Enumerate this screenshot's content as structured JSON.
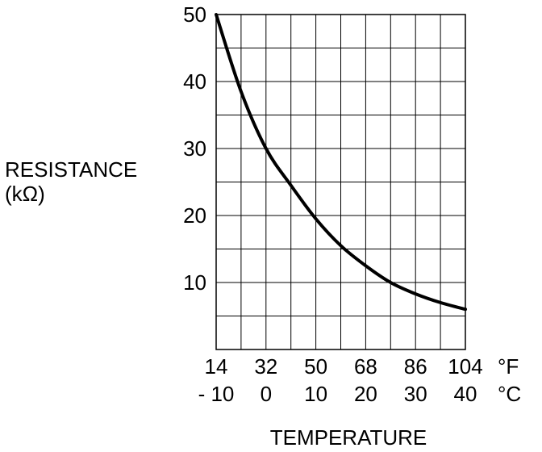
{
  "chart_data": {
    "type": "line",
    "ylabel_line1": "RESISTANCE",
    "ylabel_line2": "(kΩ)",
    "xlabel": "TEMPERATURE",
    "ylim": [
      0,
      50
    ],
    "xlim_celsius": [
      -10,
      40
    ],
    "y_ticks": [
      "10",
      "20",
      "30",
      "40",
      "50"
    ],
    "y_tick_values": [
      10,
      20,
      30,
      40,
      50
    ],
    "x_ticks_f": [
      "14",
      "32",
      "50",
      "68",
      "86",
      "104"
    ],
    "x_ticks_c": [
      "- 10",
      "0",
      "10",
      "20",
      "30",
      "40"
    ],
    "x_tick_values_c": [
      -10,
      0,
      10,
      20,
      30,
      40
    ],
    "unit_f": "°F",
    "unit_c": "°C",
    "grid": true,
    "series": [
      {
        "x": [
          -10,
          -5,
          0,
          5,
          10,
          15,
          20,
          25,
          30,
          35,
          40
        ],
        "values": [
          50,
          38.5,
          30,
          24.5,
          19.5,
          15.5,
          12.5,
          10,
          8.3,
          7,
          6
        ]
      }
    ]
  }
}
